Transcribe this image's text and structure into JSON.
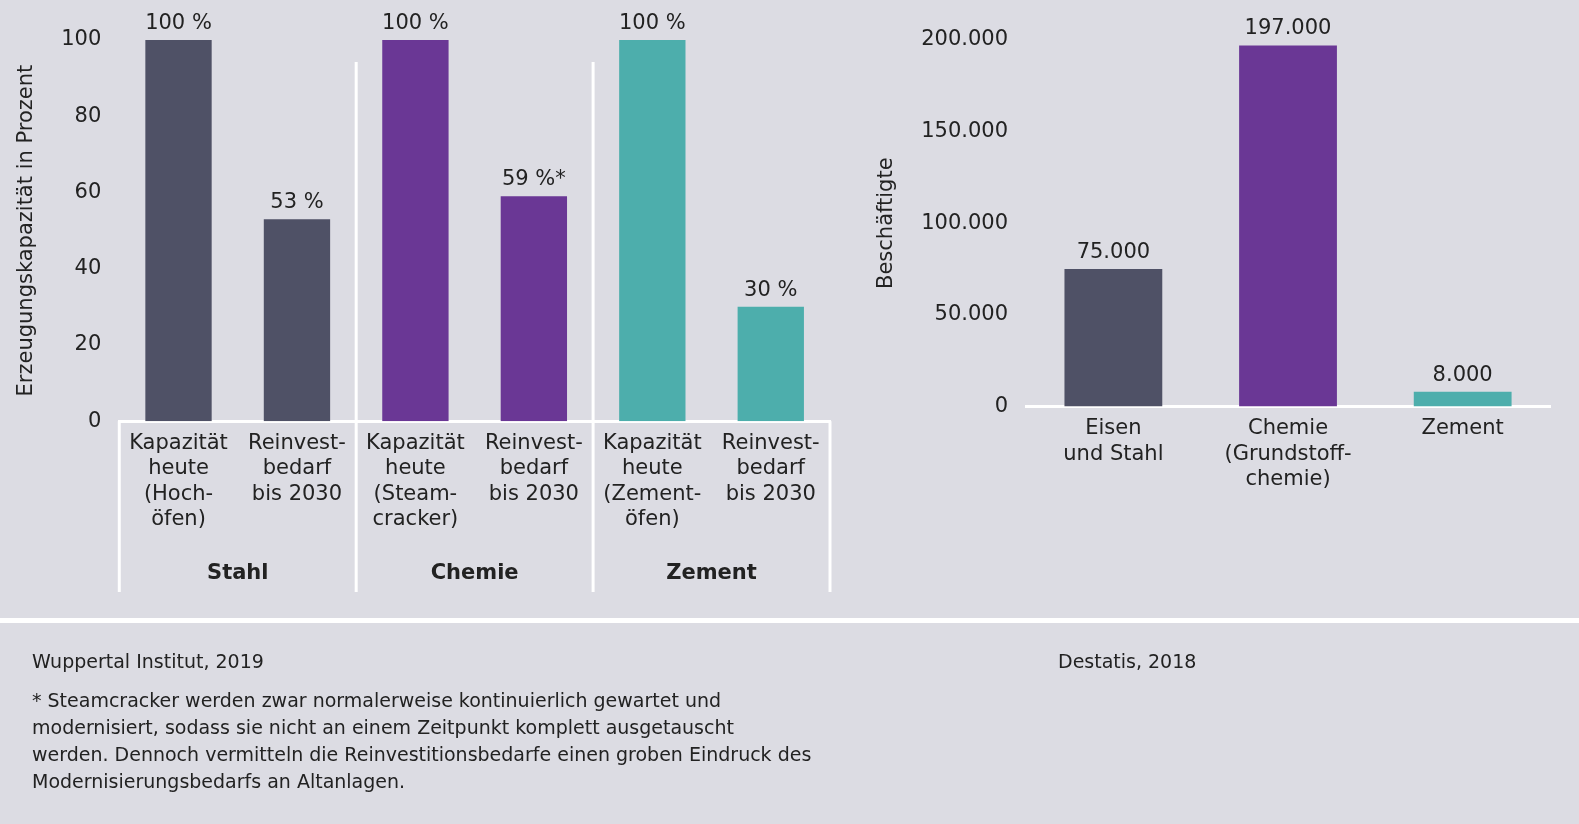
{
  "chart_data": [
    {
      "type": "bar",
      "categories": [
        "Kapazität\nheute\n(Hoch-\nöfen)",
        "Reinvest-\nbedarf\nbis 2030",
        "Kapazität\nheute\n(Steam-\ncracker)",
        "Reinvest-\nbedarf\nbis 2030",
        "Kapazität\nheute\n(Zement-\nöfen)",
        "Reinvest-\nbedarf\nbis 2030"
      ],
      "values": [
        100,
        53,
        100,
        59,
        100,
        30
      ],
      "colors": [
        "#4f5166",
        "#4f5166",
        "#6a3795",
        "#6a3795",
        "#4daeac",
        "#4daeac"
      ],
      "value_labels": [
        "100 %",
        "53 %",
        "100 %",
        "59 %*",
        "100 %",
        "30 %"
      ],
      "ylabel": "Erzeugungskapazität in Prozent",
      "ylim": [
        0,
        100
      ],
      "yticks": [
        0,
        20,
        40,
        60,
        80,
        100
      ],
      "grid": false,
      "legend": false,
      "annotations": [
        "Stahl",
        "Chemie",
        "Zement",
        "Wuppertal Institut, 2019",
        "* Steamcracker werden zwar normalerweise kontinuierlich gewartet und modernisiert, sodass sie nicht an einem Zeitpunkt komplett ausgetauscht werden. Dennoch vermitteln die Reinvestitionsbedarfe einen groben Eindruck des Modernisierungsbedarfs an Altanlagen."
      ]
    },
    {
      "type": "bar",
      "categories": [
        "Eisen\nund Stahl",
        "Chemie\n(Grundstoff-\nchemie)",
        "Zement"
      ],
      "values": [
        75000,
        197000,
        8000
      ],
      "colors": [
        "#4f5166",
        "#6a3795",
        "#4daeac"
      ],
      "value_labels": [
        "75.000",
        "197.000",
        "8.000"
      ],
      "ylabel": "Beschäftigte",
      "ylim": [
        0,
        200000
      ],
      "yticks": [
        {
          "value": 0,
          "label": "0"
        },
        {
          "value": 50000,
          "label": "50.000"
        },
        {
          "value": 100000,
          "label": "100.000"
        },
        {
          "value": 150000,
          "label": "150.000"
        },
        {
          "value": 200000,
          "label": "200.000"
        }
      ],
      "grid": false,
      "legend": false,
      "annotations": [
        "Destatis, 2018"
      ]
    }
  ]
}
